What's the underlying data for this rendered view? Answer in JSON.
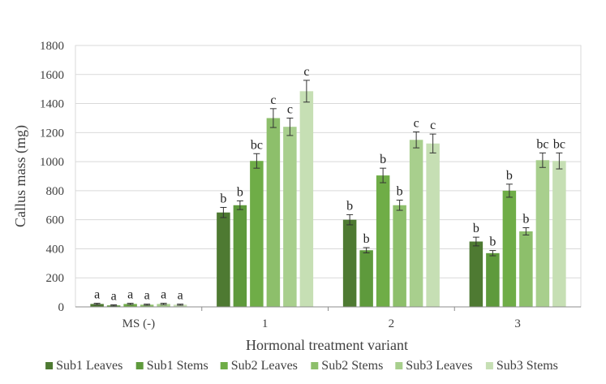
{
  "chart_data": {
    "type": "bar",
    "xlabel": "Hormonal treatment variant",
    "ylabel": "Callus mass (mg)",
    "ylim": [
      0,
      1800
    ],
    "yticks": [
      0,
      200,
      400,
      600,
      800,
      1000,
      1200,
      1400,
      1600,
      1800
    ],
    "categories": [
      "MS (-)",
      "1",
      "2",
      "3"
    ],
    "grid": true,
    "legend_position": "bottom",
    "series": [
      {
        "name": "Sub1 Leaves",
        "color": "#4e7a32",
        "values": [
          20,
          650,
          600,
          450
        ],
        "errors": [
          5,
          35,
          35,
          30
        ],
        "letters": [
          "a",
          "b",
          "b",
          "b"
        ]
      },
      {
        "name": "Sub1 Stems",
        "color": "#5e9a3c",
        "values": [
          10,
          700,
          390,
          370
        ],
        "errors": [
          4,
          30,
          18,
          18
        ],
        "letters": [
          "a",
          "b",
          "b",
          "b"
        ]
      },
      {
        "name": "Sub2 Leaves",
        "color": "#6fad47",
        "values": [
          20,
          1005,
          905,
          800
        ],
        "errors": [
          5,
          50,
          50,
          45
        ],
        "letters": [
          "a",
          "bc",
          "b",
          "b"
        ]
      },
      {
        "name": "Sub2 Stems",
        "color": "#8dbf6b",
        "values": [
          15,
          1300,
          700,
          520
        ],
        "errors": [
          4,
          65,
          35,
          25
        ],
        "letters": [
          "a",
          "c",
          "b",
          "b"
        ]
      },
      {
        "name": "Sub3 Leaves",
        "color": "#a8cf8d",
        "values": [
          20,
          1240,
          1150,
          1010
        ],
        "errors": [
          5,
          60,
          55,
          50
        ],
        "letters": [
          "a",
          "c",
          "c",
          "bc"
        ]
      },
      {
        "name": "Sub3 Stems",
        "color": "#c6dfb4",
        "values": [
          15,
          1485,
          1125,
          1005
        ],
        "errors": [
          4,
          75,
          65,
          55
        ],
        "letters": [
          "a",
          "c",
          "c",
          "bc"
        ]
      }
    ]
  }
}
